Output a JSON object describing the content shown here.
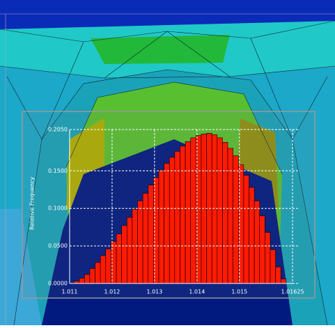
{
  "chart_data": {
    "type": "histogram",
    "y_label": "Relative Frequency",
    "bins": [
      1.0111,
      1.011225,
      1.01135,
      1.011475,
      1.0116,
      1.011725,
      1.01185,
      1.011975,
      1.0121,
      1.012225,
      1.01235,
      1.012475,
      1.0126,
      1.012725,
      1.01285,
      1.012975,
      1.0131,
      1.013225,
      1.01335,
      1.013475,
      1.0136,
      1.013725,
      1.01385,
      1.013975,
      1.0141,
      1.014225,
      1.01435,
      1.014475,
      1.0146,
      1.014725,
      1.01485,
      1.014975,
      1.0151,
      1.015225,
      1.01535,
      1.015475,
      1.0156,
      1.015725,
      1.01585,
      1.015975,
      1.0161
    ],
    "values": [
      0.003,
      0.007,
      0.012,
      0.02,
      0.028,
      0.037,
      0.046,
      0.056,
      0.066,
      0.077,
      0.088,
      0.099,
      0.11,
      0.12,
      0.131,
      0.141,
      0.151,
      0.16,
      0.168,
      0.176,
      0.183,
      0.189,
      0.194,
      0.197,
      0.199,
      0.2,
      0.198,
      0.194,
      0.188,
      0.18,
      0.17,
      0.158,
      0.144,
      0.128,
      0.11,
      0.09,
      0.068,
      0.045,
      0.022,
      0.006
    ],
    "color": "#ff1a00",
    "xlim": [
      1.011,
      1.01625
    ],
    "xticks": [
      1.011,
      1.012,
      1.013,
      1.014,
      1.015,
      1.01625
    ],
    "ylim": [
      0,
      0.205
    ],
    "yticks": [
      {
        "value": 0,
        "label": "0.0000"
      },
      {
        "value": 0.05,
        "label": "0.0500"
      },
      {
        "value": 0.1,
        "label": "0.1000"
      },
      {
        "value": 0.15,
        "label": "0.1500"
      },
      {
        "value": 0.205,
        "label": "0.2050"
      }
    ],
    "grid": true
  }
}
